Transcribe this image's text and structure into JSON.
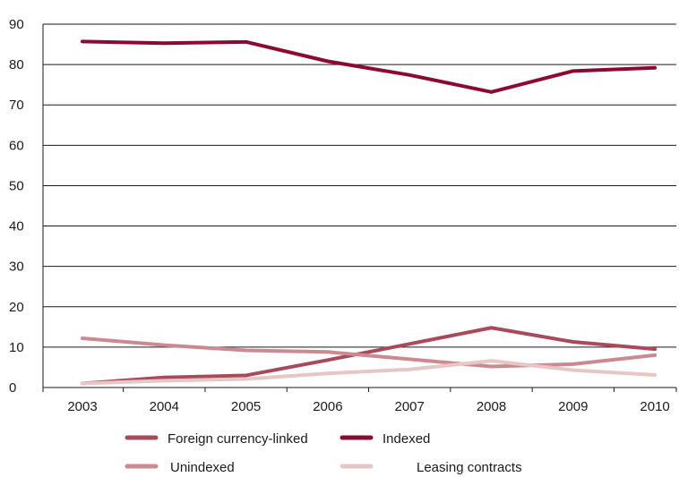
{
  "chart_data": {
    "type": "line",
    "title": "",
    "xlabel": "",
    "ylabel": "",
    "x": [
      "2003",
      "2004",
      "2005",
      "2006",
      "2007",
      "2008",
      "2009",
      "2010"
    ],
    "ylim": [
      0,
      90
    ],
    "yticks": [
      0,
      10,
      20,
      30,
      40,
      50,
      60,
      70,
      80,
      90
    ],
    "grid": "horizontal",
    "legend_position": "bottom",
    "series": [
      {
        "name": "Foreign currency-linked",
        "color": "#a84a5b",
        "values": [
          1.0,
          2.5,
          3.0,
          6.8,
          10.8,
          14.8,
          11.3,
          9.5
        ]
      },
      {
        "name": "Indexed",
        "color": "#8b0a32",
        "values": [
          85.7,
          85.3,
          85.6,
          80.8,
          77.4,
          73.2,
          78.4,
          79.2
        ]
      },
      {
        "name": "Unindexed",
        "color": "#cb8a92",
        "values": [
          12.2,
          10.5,
          9.2,
          8.8,
          7.0,
          5.2,
          5.8,
          8.0
        ]
      },
      {
        "name": "Leasing contracts",
        "color": "#e7c6c6",
        "values": [
          1.0,
          1.7,
          2.1,
          3.5,
          4.5,
          6.6,
          4.3,
          3.1
        ]
      }
    ]
  }
}
